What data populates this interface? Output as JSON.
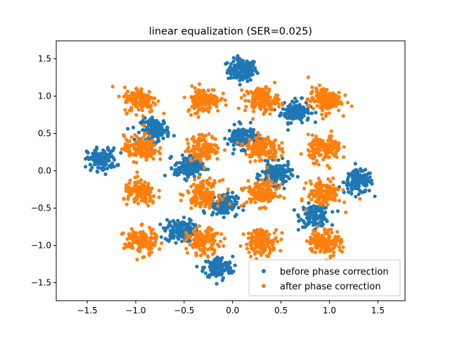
{
  "chart_data": {
    "type": "scatter",
    "title": "linear equalization (SER=0.025)",
    "xlabel": "",
    "ylabel": "",
    "xlim": [
      -1.82,
      1.78
    ],
    "ylim": [
      -1.74,
      1.74
    ],
    "xticks": [
      -1.5,
      -1.0,
      -0.5,
      0.0,
      0.5,
      1.0,
      1.5
    ],
    "xtick_labels": [
      "−1.5",
      "−1.0",
      "−0.5",
      "0.0",
      "0.5",
      "1.0",
      "1.5"
    ],
    "yticks": [
      -1.5,
      -1.0,
      -0.5,
      0.0,
      0.5,
      1.0,
      1.5
    ],
    "ytick_labels": [
      "−1.5",
      "−1.0",
      "−0.5",
      "0.0",
      "0.5",
      "1.0",
      "1.5"
    ],
    "grid": false,
    "legend_position": "bottom-right",
    "series": [
      {
        "name": "before phase correction",
        "color": "#1f77b4",
        "cluster_spread": 0.075,
        "points_per_cluster": 140,
        "cluster_centers": [
          [
            0.1,
            1.35
          ],
          [
            0.65,
            0.8
          ],
          [
            1.3,
            -0.15
          ],
          [
            0.85,
            -0.6
          ],
          [
            -0.15,
            -1.3
          ],
          [
            -0.55,
            -0.8
          ],
          [
            -1.35,
            0.15
          ],
          [
            -0.8,
            0.55
          ],
          [
            0.1,
            0.45
          ],
          [
            0.45,
            -0.05
          ],
          [
            -0.1,
            -0.45
          ],
          [
            -0.45,
            0.05
          ]
        ]
      },
      {
        "name": "after phase correction",
        "color": "#ff7f0e",
        "cluster_spread": 0.085,
        "points_per_cluster": 140,
        "cluster_centers": [
          [
            -0.95,
            0.95
          ],
          [
            -0.3,
            0.95
          ],
          [
            0.3,
            0.95
          ],
          [
            0.95,
            0.95
          ],
          [
            -0.95,
            0.3
          ],
          [
            -0.3,
            0.3
          ],
          [
            0.3,
            0.3
          ],
          [
            0.95,
            0.3
          ],
          [
            -0.95,
            -0.3
          ],
          [
            -0.3,
            -0.3
          ],
          [
            0.3,
            -0.3
          ],
          [
            0.95,
            -0.3
          ],
          [
            -0.95,
            -0.95
          ],
          [
            -0.3,
            -0.95
          ],
          [
            0.3,
            -0.95
          ],
          [
            0.95,
            -0.95
          ]
        ]
      }
    ]
  }
}
